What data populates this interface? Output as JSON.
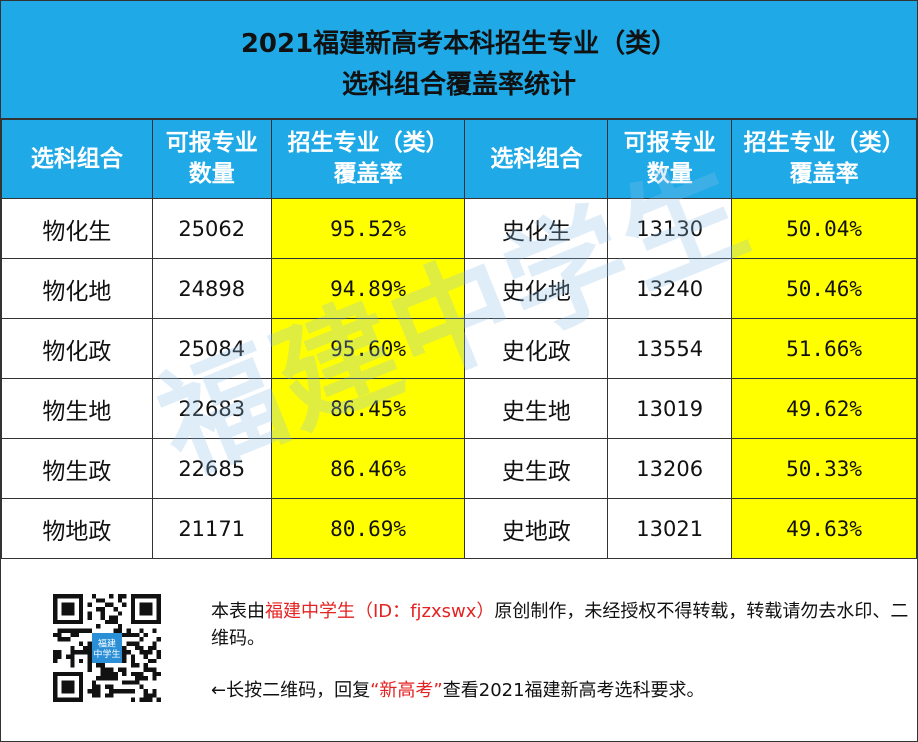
{
  "title": {
    "line1": "2021福建新高考本科招生专业（类）",
    "line2": "选科组合覆盖率统计"
  },
  "table": {
    "headers": [
      [
        "选科组合"
      ],
      [
        "可报专业",
        "数量"
      ],
      [
        "招生专业（类）",
        "覆盖率"
      ],
      [
        "选科组合"
      ],
      [
        "可报专业",
        "数量"
      ],
      [
        "招生专业（类）",
        "覆盖率"
      ]
    ],
    "rows": [
      [
        "物化生",
        "25062",
        "95.52%",
        "史化生",
        "13130",
        "50.04%"
      ],
      [
        "物化地",
        "24898",
        "94.89%",
        "史化地",
        "13240",
        "50.46%"
      ],
      [
        "物化政",
        "25084",
        "95.60%",
        "史化政",
        "13554",
        "51.66%"
      ],
      [
        "物生地",
        "22683",
        "86.45%",
        "史生地",
        "13019",
        "49.62%"
      ],
      [
        "物生政",
        "22685",
        "86.46%",
        "史生政",
        "13206",
        "50.33%"
      ],
      [
        "物地政",
        "21171",
        "80.69%",
        "史地政",
        "13021",
        "49.63%"
      ]
    ]
  },
  "watermark": "福建中学生",
  "qr": {
    "center_label_line1": "福建",
    "center_label_line2": "中学生"
  },
  "footer": {
    "note1_pre": "本表由",
    "note1_red": "福建中学生（ID：fjzxswx）",
    "note1_post": "原创制作，未经授权不得转载，转载请勿去水印、二维码。",
    "note2_pre": "←长按二维码，回复",
    "note2_red": "“新高考”",
    "note2_post": "查看2021福建新高考选科要求。"
  },
  "colors": {
    "header_blue": "#1fa9e6",
    "highlight_yellow": "#ffff00",
    "link_red": "#e52222"
  }
}
